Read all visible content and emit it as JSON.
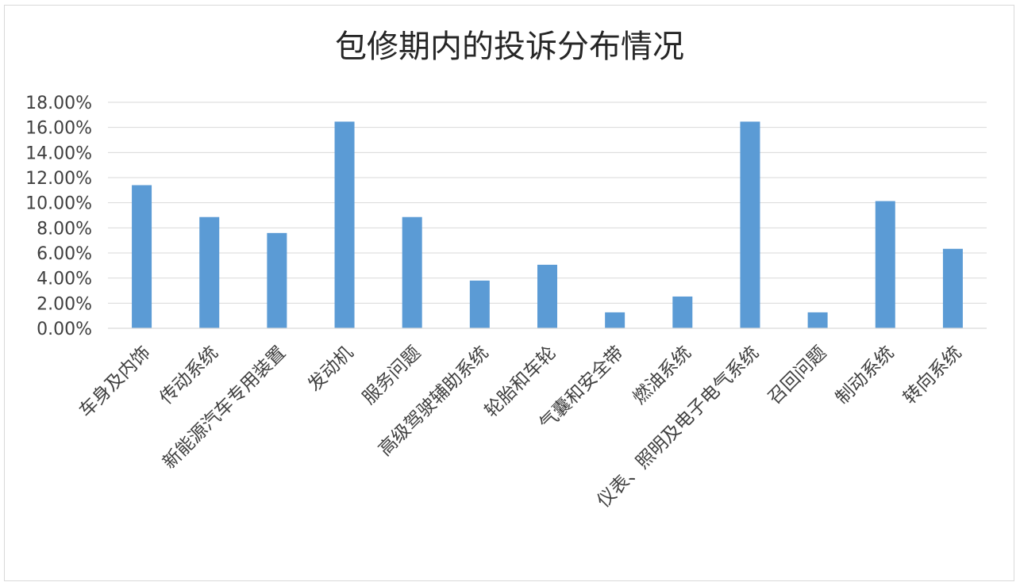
{
  "chart_data": {
    "type": "bar",
    "title": "包修期内的投诉分布情况",
    "xlabel": "",
    "ylabel": "",
    "categories": [
      "车身及内饰",
      "传动系统",
      "新能源汽车专用装置",
      "发动机",
      "服务问题",
      "高级驾驶辅助系统",
      "轮胎和车轮",
      "气囊和安全带",
      "燃油系统",
      "仪表、照明及电子电气系统",
      "召回问题",
      "制动系统",
      "转向系统"
    ],
    "values": [
      11.4,
      8.86,
      7.59,
      16.46,
      8.86,
      3.8,
      5.06,
      1.27,
      2.53,
      16.46,
      1.27,
      10.13,
      6.33
    ],
    "value_format": "percent_2dp",
    "ylim": [
      0,
      18
    ],
    "ytick_step": 2,
    "yticks": [
      "0.00%",
      "2.00%",
      "4.00%",
      "6.00%",
      "8.00%",
      "10.00%",
      "12.00%",
      "14.00%",
      "16.00%",
      "18.00%"
    ],
    "grid": true,
    "legend": "none",
    "bar_color": "#5B9BD5",
    "grid_color": "#D9D9D9",
    "text_color": "#404040",
    "x_label_rotation_deg": -45
  }
}
